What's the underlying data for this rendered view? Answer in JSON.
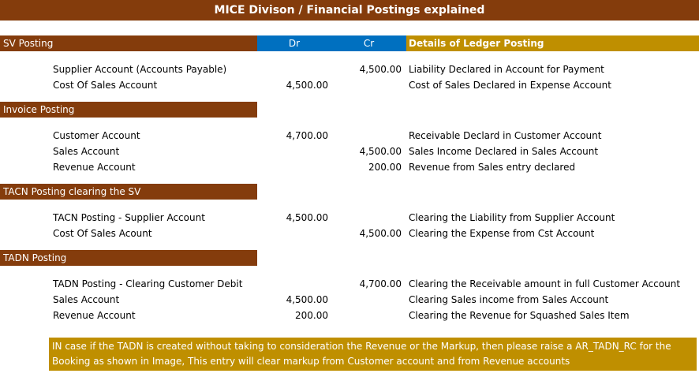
{
  "title": "MICE Divison / Financial Postings explained",
  "header": {
    "sv_posting": "SV Posting",
    "dr": "Dr",
    "cr": "Cr",
    "details": "Details of Ledger Posting"
  },
  "sv": {
    "rows": [
      {
        "account": "Supplier Account (Accounts Payable)",
        "dr": "",
        "cr": "4,500.00",
        "detail": "Liability Declared in Account for Payment"
      },
      {
        "account": "Cost Of Sales Account",
        "dr": "4,500.00",
        "cr": "",
        "detail": "Cost of Sales Declared in Expense Account"
      }
    ]
  },
  "invoice": {
    "label": "Invoice Posting",
    "rows": [
      {
        "account": "Customer Account",
        "dr": "4,700.00",
        "cr": "",
        "detail": "Receivable Declard in Customer Account"
      },
      {
        "account": "Sales Account",
        "dr": "",
        "cr": "4,500.00",
        "detail": "Sales Income Declared in Sales Account"
      },
      {
        "account": "Revenue Account",
        "dr": "",
        "cr": "200.00",
        "detail": "Revenue from Sales entry declared"
      }
    ]
  },
  "tacn": {
    "label": "TACN Posting clearing the SV",
    "rows": [
      {
        "account": "TACN Posting - Supplier Account",
        "dr": "4,500.00",
        "cr": "",
        "detail": "Clearing the Liability from Supplier Account"
      },
      {
        "account": "Cost Of Sales Acount",
        "dr": "",
        "cr": "4,500.00",
        "detail": "Clearing the Expense from Cst Account"
      }
    ]
  },
  "tadn": {
    "label": "TADN Posting",
    "rows": [
      {
        "account": "TADN Posting - Clearing Customer Debit",
        "dr": "",
        "cr": "4,700.00",
        "detail": "Clearing the Receivable amount in full Customer Account"
      },
      {
        "account": "Sales Account",
        "dr": "4,500.00",
        "cr": "",
        "detail": "Clearing Sales income from Sales Account"
      },
      {
        "account": "Revenue Account",
        "dr": "200.00",
        "cr": "",
        "detail": "Clearing the Revenue for  Squashed Sales Item"
      }
    ]
  },
  "note": "IN case if the TADN is created without taking to consideration the Revenue or the Markup, then please raise a AR_TADN_RC for the Booking as shown in Image, This entry will clear markup from Customer account and from Revenue accounts"
}
